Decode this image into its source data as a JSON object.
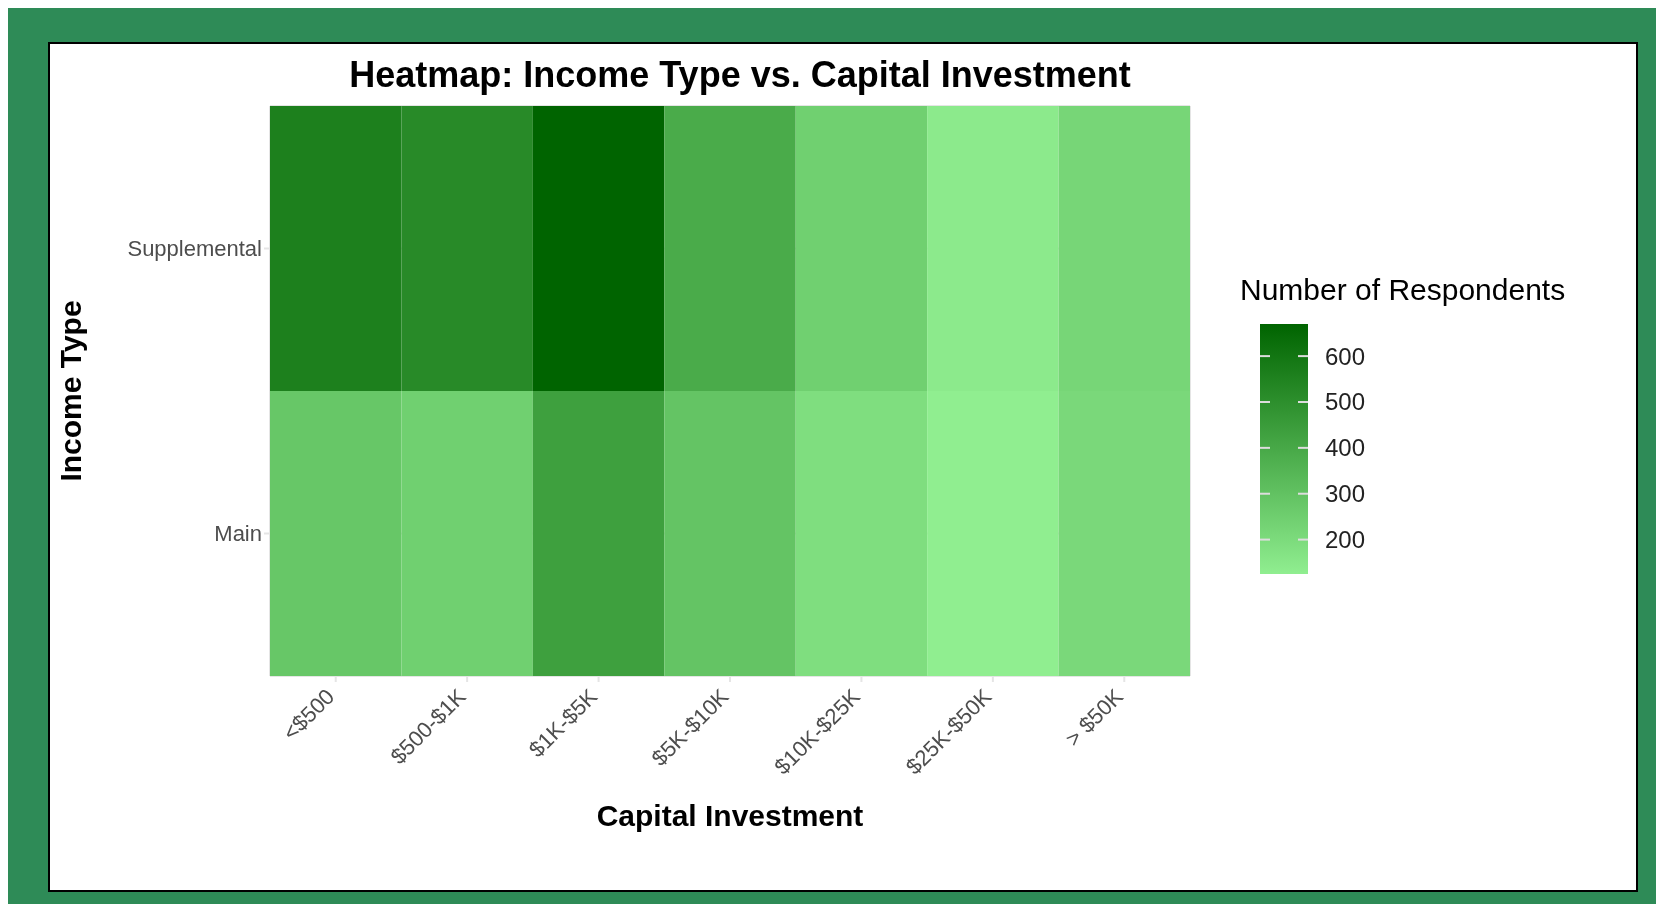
{
  "chart_data": {
    "type": "heatmap",
    "title": "Heatmap: Income Type vs. Capital Investment",
    "xlabel": "Capital Investment",
    "ylabel": "Income Type",
    "clabel": "Number of Respondents",
    "categories": [
      "<$500",
      "$500-$1K",
      "$1K-$5K",
      "$5K-$10K",
      "$10K-$25K",
      "$25K-$50K",
      "> $50K"
    ],
    "y_categories": [
      "Supplemental",
      "Main"
    ],
    "cells": [
      [
        560,
        520,
        670,
        390,
        245,
        140,
        220
      ],
      [
        280,
        245,
        435,
        290,
        190,
        125,
        210
      ]
    ],
    "clim": [
      125,
      670
    ],
    "cticks": [
      200,
      300,
      400,
      500,
      600
    ],
    "grid": true
  }
}
